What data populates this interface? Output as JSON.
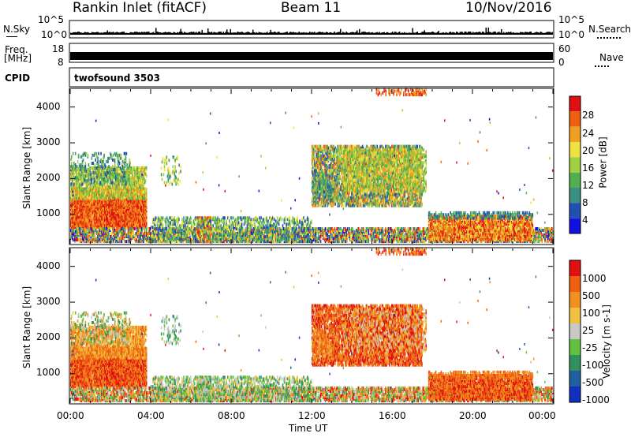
{
  "header": {
    "station": "Rankin Inlet (fitACF)",
    "beam": "Beam 11",
    "date": "10/Nov/2016"
  },
  "top_panels": {
    "nsky_label": "N.Sky",
    "nsearch_label": "N.Search",
    "nsky_ticks": [
      "10^5",
      "10^0"
    ],
    "nsearch_ticks": [
      "10^5",
      "10^0"
    ],
    "freq_label_1": "Freq.",
    "freq_label_2": "[MHz]",
    "freq_ticks": [
      "18",
      "8"
    ],
    "nave_label": "Nave",
    "nave_ticks": [
      "60",
      "0"
    ],
    "cpid_label": "CPID",
    "cpid_value": "twofsound 3503"
  },
  "chart_data": [
    {
      "type": "heatmap",
      "name": "power",
      "ylabel": "Slant Range [km]",
      "ylim": [
        180,
        4500
      ],
      "yticks": [
        "1000",
        "2000",
        "3000",
        "4000"
      ],
      "xlim": [
        0,
        24
      ],
      "colorbar_label": "Power [dB]",
      "colorbar_ticks": [
        "4",
        "8",
        "12",
        "16",
        "20",
        "24",
        "28"
      ],
      "colors": [
        "#1010e0",
        "#2050b0",
        "#3a9080",
        "#50b050",
        "#a0d040",
        "#f0e040",
        "#f0a020",
        "#f06010",
        "#e01010"
      ]
    },
    {
      "type": "heatmap",
      "name": "velocity",
      "ylabel": "Slant Range [km]",
      "ylim": [
        180,
        4500
      ],
      "yticks": [
        "1000",
        "2000",
        "3000",
        "4000"
      ],
      "xlim": [
        0,
        24
      ],
      "colorbar_label": "Velocity [m s-1]",
      "colorbar_ticks": [
        "1000",
        "500",
        "100",
        "25",
        "-25",
        "-100",
        "-500",
        "-1000"
      ],
      "colors": [
        "#1030c0",
        "#2060a0",
        "#309060",
        "#60c040",
        "#c8c8c8",
        "#f0c040",
        "#f09020",
        "#f06010",
        "#e01010"
      ]
    }
  ],
  "xaxis": {
    "ticks": [
      "00:00",
      "04:00",
      "08:00",
      "12:00",
      "16:00",
      "20:00",
      "00:00"
    ],
    "label": "Time UT"
  }
}
